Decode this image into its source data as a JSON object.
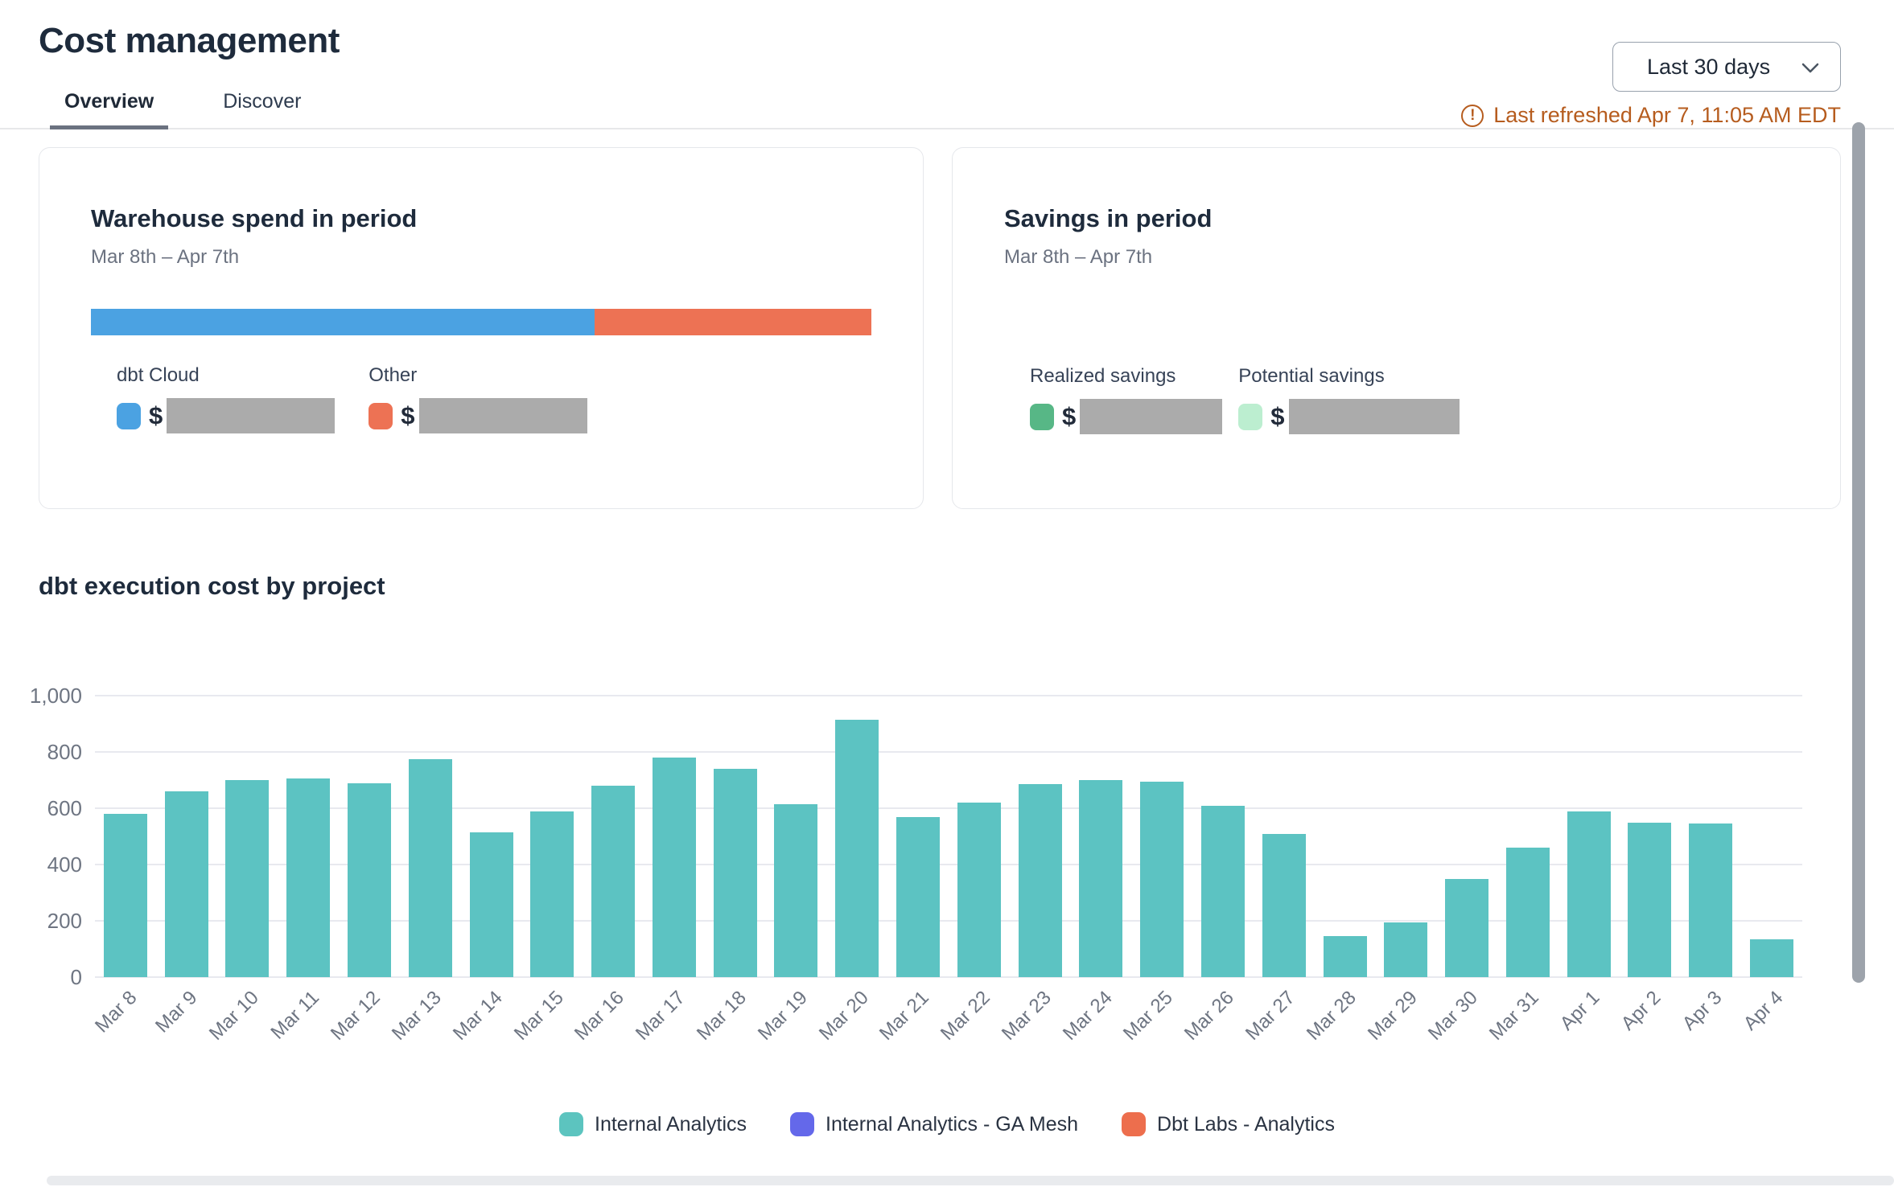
{
  "header": {
    "title": "Cost management",
    "range_selector": "Last 30 days",
    "last_refreshed": "Last refreshed Apr 7, 11:05 AM EDT"
  },
  "icons": {
    "warning_glyph": "!",
    "chevron_down": "chevron-down"
  },
  "tabs": [
    {
      "label": "Overview",
      "active": true
    },
    {
      "label": "Discover",
      "active": false
    }
  ],
  "cards": {
    "warehouse": {
      "title": "Warehouse spend in period",
      "subtitle": "Mar 8th – Apr 7th",
      "bar": {
        "segments": [
          {
            "name": "dbt Cloud",
            "color": "#4ba2e2",
            "pct": 64.5
          },
          {
            "name": "Other",
            "color": "#ed7254",
            "pct": 35.5
          }
        ]
      },
      "legend": [
        {
          "label": "dbt Cloud",
          "color": "#4ba2e2",
          "currency": "$",
          "value_redacted": true
        },
        {
          "label": "Other",
          "color": "#ed7254",
          "currency": "$",
          "value_redacted": true
        }
      ]
    },
    "savings": {
      "title": "Savings in period",
      "subtitle": "Mar 8th – Apr 7th",
      "legend": [
        {
          "label": "Realized savings",
          "color": "#57b786",
          "currency": "$",
          "value_redacted": true
        },
        {
          "label": "Potential savings",
          "color": "#bceed0",
          "currency": "$",
          "value_redacted": true
        }
      ]
    }
  },
  "chart_section": {
    "title": "dbt execution cost by project"
  },
  "chart_data": {
    "type": "bar",
    "title": "dbt execution cost by project",
    "categories": [
      "Mar 8",
      "Mar 9",
      "Mar 10",
      "Mar 11",
      "Mar 12",
      "Mar 13",
      "Mar 14",
      "Mar 15",
      "Mar 16",
      "Mar 17",
      "Mar 18",
      "Mar 19",
      "Mar 20",
      "Mar 21",
      "Mar 22",
      "Mar 23",
      "Mar 24",
      "Mar 25",
      "Mar 26",
      "Mar 27",
      "Mar 28",
      "Mar 29",
      "Mar 30",
      "Mar 31",
      "Apr 1",
      "Apr 2",
      "Apr 3",
      "Apr 4"
    ],
    "series": [
      {
        "name": "Internal Analytics",
        "color": "#5cc3c2",
        "values": [
          580,
          660,
          700,
          705,
          690,
          775,
          515,
          590,
          680,
          780,
          740,
          615,
          915,
          570,
          620,
          685,
          700,
          695,
          610,
          510,
          145,
          195,
          350,
          460,
          590,
          550,
          545,
          135
        ]
      }
    ],
    "xlabel": "",
    "ylabel": "",
    "ylim": [
      0,
      1000
    ],
    "yticks": [
      0,
      200,
      400,
      600,
      800,
      1000
    ],
    "grid": true,
    "legend_position": "bottom",
    "legend": [
      {
        "label": "Internal Analytics",
        "color": "#5cc4bf"
      },
      {
        "label": "Internal Analytics - GA Mesh",
        "color": "#6468ea"
      },
      {
        "label": "Dbt Labs - Analytics",
        "color": "#ed6e4d"
      }
    ]
  }
}
